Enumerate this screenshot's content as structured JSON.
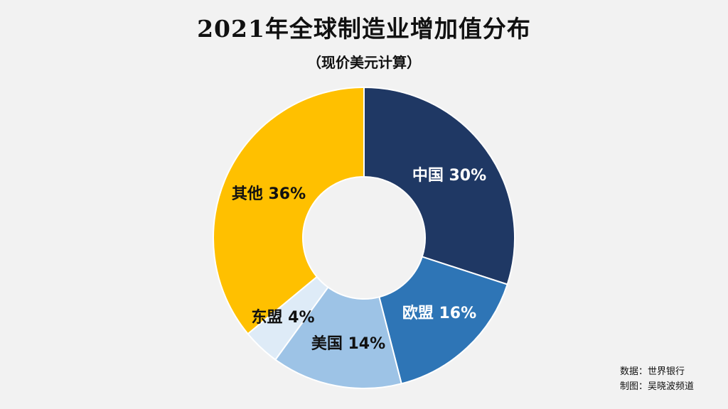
{
  "title": "2021年全球制造业增加值分布",
  "subtitle": "（现价美元计算）",
  "chart_data": {
    "type": "pie",
    "donut": true,
    "slices": [
      {
        "label": "中国 30%",
        "value": 30,
        "color": "#1f3864",
        "label_color": "#ffffff"
      },
      {
        "label": "欧盟 16%",
        "value": 16,
        "color": "#2e75b6",
        "label_color": "#ffffff"
      },
      {
        "label": "美国 14%",
        "value": 14,
        "color": "#9dc3e6",
        "label_color": "#111111"
      },
      {
        "label": "东盟 4%",
        "value": 4,
        "color": "#deebf7",
        "label_color": "#111111"
      },
      {
        "label": "其他 36%",
        "value": 36,
        "color": "#ffc000",
        "label_color": "#111111"
      }
    ]
  },
  "source": {
    "data_line": "数据：世界银行",
    "made_line": "制图：吴晓波频道"
  }
}
